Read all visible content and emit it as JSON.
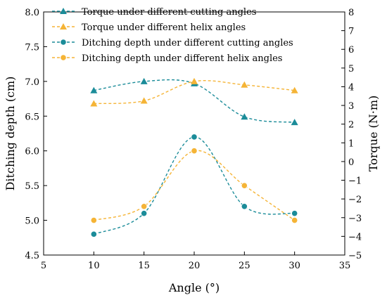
{
  "chart_data": {
    "type": "line",
    "xlabel": "Angle (°)",
    "ylabel_left": "Ditching depth (cm)",
    "ylabel_right": "Torque (N·m)",
    "xlim": [
      5,
      35
    ],
    "ylim_left": [
      4.5,
      8.0
    ],
    "ylim_right": [
      -5,
      8
    ],
    "x_ticks": [
      "5",
      "10",
      "15",
      "20",
      "25",
      "30",
      "35"
    ],
    "y_left_ticks": [
      "4.5",
      "5.0",
      "5.5",
      "6.0",
      "6.5",
      "7.0",
      "7.5",
      "8.0"
    ],
    "y_right_ticks": [
      "−5",
      "−4",
      "−3",
      "−2",
      "−1",
      "0",
      "1",
      "2",
      "3",
      "4",
      "5",
      "6",
      "7",
      "8"
    ],
    "legend_position": "top-left",
    "series": [
      {
        "name": "Torque under different cutting angles",
        "axis": "left",
        "marker": "triangle",
        "color": "#1b8c99",
        "x": [
          10,
          15,
          20,
          25,
          30
        ],
        "y": [
          6.87,
          7.0,
          6.97,
          6.49,
          6.41
        ]
      },
      {
        "name": "Torque under different helix angles",
        "axis": "left",
        "marker": "triangle",
        "color": "#f5b436",
        "x": [
          10,
          15,
          20,
          25,
          30
        ],
        "y": [
          6.68,
          6.72,
          7.0,
          6.95,
          6.87
        ]
      },
      {
        "name": "Ditching depth under different cutting angles",
        "axis": "left",
        "marker": "circle",
        "color": "#1b8c99",
        "x": [
          10,
          15,
          20,
          25,
          30
        ],
        "y": [
          4.8,
          5.1,
          6.2,
          5.2,
          5.1
        ]
      },
      {
        "name": "Ditching depth under different helix angles",
        "axis": "left",
        "marker": "circle",
        "color": "#f5b436",
        "x": [
          10,
          15,
          20,
          25,
          30
        ],
        "y": [
          5.0,
          5.2,
          6.0,
          5.5,
          5.0
        ]
      }
    ]
  }
}
